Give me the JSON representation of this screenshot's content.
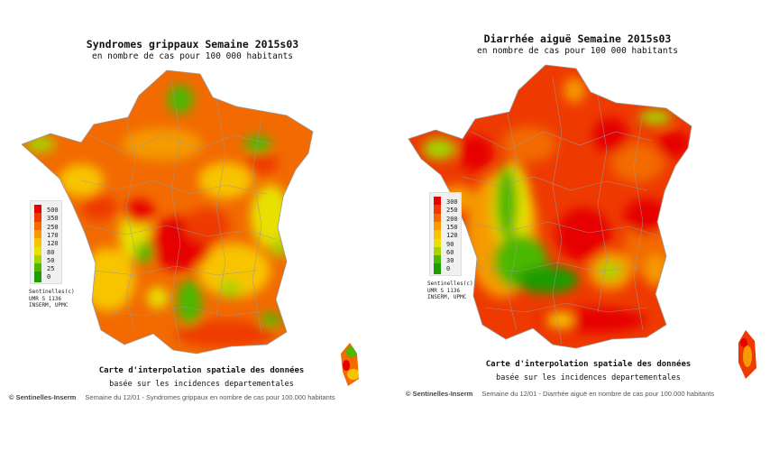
{
  "left": {
    "title": "Syndromes grippaux Semaine 2015s03",
    "subtitle": "en nombre de cas pour 100 000 habitants",
    "legend": [
      {
        "label": "500",
        "color": "#e60000"
      },
      {
        "label": "350",
        "color": "#ee3a00"
      },
      {
        "label": "250",
        "color": "#f26a00"
      },
      {
        "label": "170",
        "color": "#f59a00"
      },
      {
        "label": "120",
        "color": "#f8c400"
      },
      {
        "label": "80",
        "color": "#e8e000"
      },
      {
        "label": "50",
        "color": "#a6d400"
      },
      {
        "label": "25",
        "color": "#4cb800"
      },
      {
        "label": "0",
        "color": "#1e9c00"
      }
    ],
    "credits": [
      "Sentinelles(c)",
      "UMR S 1136",
      "INSERM, UPMC"
    ],
    "caption_line1": "Carte d'interpolation spatiale des données",
    "caption_line2": "basée sur les incidences departementales",
    "footer_copyright": "© Sentinelles-Inserm",
    "footer_text": "Semaine du 12/01 - Syndromes grippaux en nombre de cas pour 100.000 habitants"
  },
  "right": {
    "title": "Diarrhée aiguë Semaine 2015s03",
    "subtitle": "en nombre de cas pour 100 000 habitants",
    "legend": [
      {
        "label": "300",
        "color": "#e60000"
      },
      {
        "label": "250",
        "color": "#ee3a00"
      },
      {
        "label": "200",
        "color": "#f26a00"
      },
      {
        "label": "150",
        "color": "#f59a00"
      },
      {
        "label": "120",
        "color": "#f8c400"
      },
      {
        "label": "90",
        "color": "#e8e000"
      },
      {
        "label": "60",
        "color": "#a6d400"
      },
      {
        "label": "30",
        "color": "#4cb800"
      },
      {
        "label": "0",
        "color": "#1e9c00"
      }
    ],
    "credits": [
      "Sentinelles(c)",
      "UMR S 1136",
      "INSERM, UPMC"
    ],
    "caption_line1": "Carte d'interpolation spatiale des données",
    "caption_line2": "basée sur les incidences departementales",
    "footer_copyright": "© Sentinelles-Inserm",
    "footer_text": "Semaine du 12/01 - Diarrhée aiguë en nombre de cas pour 100.000 habitants"
  }
}
